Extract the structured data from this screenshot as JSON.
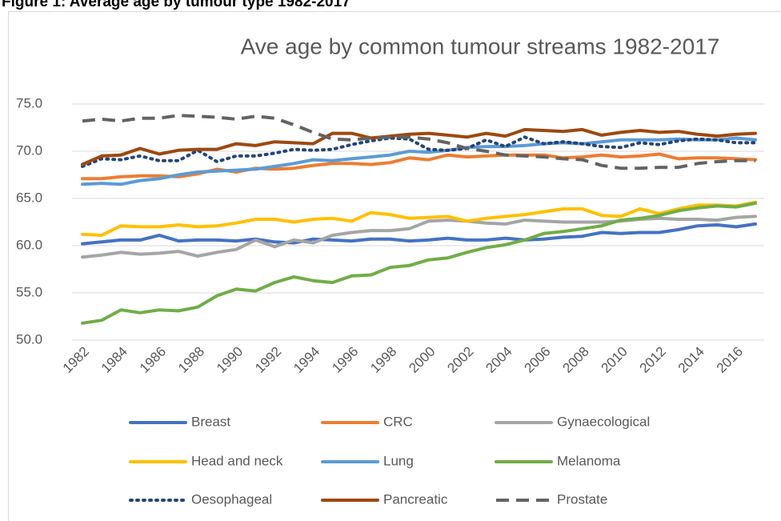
{
  "chart_data": {
    "type": "line",
    "caption": "Figure 1: Average age by tumour type 1982-2017",
    "title": "Ave age by common tumour streams 1982-2017",
    "categories": [
      "1982",
      null,
      "1984",
      null,
      "1986",
      null,
      "1988",
      null,
      "1990",
      null,
      "1992",
      null,
      "1994",
      null,
      "1996",
      null,
      "1998",
      null,
      "2000",
      null,
      "2002",
      null,
      "2004",
      null,
      "2006",
      null,
      "2008",
      null,
      "2010",
      null,
      "2012",
      null,
      "2014",
      null,
      "2016",
      null
    ],
    "ylim": [
      50,
      75
    ],
    "yticks": [
      {
        "value": 50,
        "label": "50.0"
      },
      {
        "value": 55,
        "label": "55.0"
      },
      {
        "value": 60,
        "label": "60.0"
      },
      {
        "value": 65,
        "label": "65.0"
      },
      {
        "value": 70,
        "label": "70.0"
      },
      {
        "value": 75,
        "label": "75.0"
      }
    ],
    "grid": true,
    "legend": "bottom",
    "series": [
      {
        "name": "Breast",
        "color": "#4472c4",
        "dash": "solid",
        "values": [
          60.2,
          60.4,
          60.6,
          60.6,
          61.1,
          60.5,
          60.6,
          60.6,
          60.5,
          60.7,
          60.4,
          60.3,
          60.7,
          60.6,
          60.5,
          60.7,
          60.7,
          60.5,
          60.6,
          60.8,
          60.6,
          60.6,
          60.8,
          60.6,
          60.7,
          60.9,
          61.0,
          61.4,
          61.3,
          61.4,
          61.4,
          61.7,
          62.1,
          62.2,
          62.0,
          62.3
        ]
      },
      {
        "name": "CRC",
        "color": "#ed7d31",
        "dash": "solid",
        "values": [
          67.1,
          67.1,
          67.3,
          67.4,
          67.4,
          67.3,
          67.6,
          68.1,
          67.8,
          68.2,
          68.1,
          68.2,
          68.5,
          68.7,
          68.7,
          68.6,
          68.8,
          69.3,
          69.1,
          69.6,
          69.4,
          69.5,
          69.6,
          69.6,
          69.6,
          69.3,
          69.4,
          69.6,
          69.4,
          69.5,
          69.7,
          69.2,
          69.3,
          69.3,
          69.2,
          69.1
        ]
      },
      {
        "name": "Gynaecological",
        "color": "#a5a5a5",
        "dash": "solid",
        "values": [
          58.8,
          59.0,
          59.3,
          59.1,
          59.2,
          59.4,
          58.9,
          59.3,
          59.6,
          60.6,
          59.9,
          60.6,
          60.3,
          61.1,
          61.4,
          61.6,
          61.6,
          61.8,
          62.6,
          62.7,
          62.6,
          62.4,
          62.3,
          62.7,
          62.6,
          62.5,
          62.5,
          62.5,
          62.6,
          62.8,
          62.9,
          62.8,
          62.8,
          62.7,
          63.0,
          63.1
        ]
      },
      {
        "name": "Head and neck",
        "color": "#ffc000",
        "dash": "solid",
        "values": [
          61.2,
          61.1,
          62.1,
          62.0,
          62.0,
          62.2,
          62.0,
          62.1,
          62.4,
          62.8,
          62.8,
          62.5,
          62.8,
          62.9,
          62.6,
          63.5,
          63.3,
          62.9,
          63.0,
          63.1,
          62.6,
          62.9,
          63.1,
          63.3,
          63.6,
          63.9,
          63.9,
          63.2,
          63.1,
          63.9,
          63.4,
          63.9,
          64.3,
          64.3,
          64.2,
          64.6
        ]
      },
      {
        "name": "Lung",
        "color": "#5b9bd5",
        "dash": "solid",
        "values": [
          66.5,
          66.6,
          66.5,
          66.9,
          67.1,
          67.5,
          67.8,
          67.9,
          68.0,
          68.1,
          68.4,
          68.7,
          69.1,
          69.0,
          69.2,
          69.4,
          69.6,
          70.0,
          69.9,
          70.1,
          70.4,
          70.5,
          70.5,
          70.6,
          70.8,
          70.9,
          70.8,
          71.0,
          71.2,
          71.2,
          71.2,
          71.3,
          71.2,
          71.2,
          71.4,
          71.2
        ]
      },
      {
        "name": "Melanoma",
        "color": "#70ad47",
        "dash": "solid",
        "values": [
          51.8,
          52.1,
          53.2,
          52.9,
          53.2,
          53.1,
          53.5,
          54.7,
          55.4,
          55.2,
          56.1,
          56.7,
          56.3,
          56.1,
          56.8,
          56.9,
          57.7,
          57.9,
          58.5,
          58.7,
          59.3,
          59.8,
          60.1,
          60.6,
          61.3,
          61.5,
          61.8,
          62.1,
          62.7,
          62.9,
          63.2,
          63.7,
          64.0,
          64.2,
          64.1,
          64.5
        ]
      },
      {
        "name": "Oesophageal",
        "color": "#264478",
        "dash": "dot",
        "values": [
          68.4,
          69.2,
          69.1,
          69.5,
          69.0,
          69.0,
          70.1,
          68.9,
          69.5,
          69.5,
          69.8,
          70.2,
          70.1,
          70.2,
          70.7,
          71.1,
          71.4,
          71.3,
          70.2,
          70.1,
          70.3,
          71.2,
          70.5,
          71.5,
          70.8,
          71.0,
          70.8,
          70.5,
          70.4,
          70.9,
          70.7,
          71.1,
          71.3,
          71.2,
          70.9,
          70.9
        ]
      },
      {
        "name": "Pancreatic",
        "color": "#9e480e",
        "dash": "solid",
        "values": [
          68.6,
          69.5,
          69.6,
          70.3,
          69.7,
          70.1,
          70.2,
          70.2,
          70.8,
          70.6,
          71.0,
          70.9,
          70.8,
          71.9,
          71.9,
          71.4,
          71.6,
          71.8,
          71.9,
          71.7,
          71.5,
          71.9,
          71.6,
          72.3,
          72.2,
          72.1,
          72.3,
          71.7,
          72.0,
          72.2,
          72.0,
          72.1,
          71.8,
          71.6,
          71.8,
          71.9
        ]
      },
      {
        "name": "Prostate",
        "color": "#636363",
        "dash": "dash",
        "values": [
          73.2,
          73.4,
          73.2,
          73.5,
          73.5,
          73.8,
          73.7,
          73.6,
          73.4,
          73.7,
          73.5,
          72.8,
          72.0,
          71.3,
          71.2,
          71.4,
          71.5,
          71.5,
          71.3,
          70.9,
          70.3,
          70.0,
          69.6,
          69.5,
          69.4,
          69.2,
          69.1,
          68.5,
          68.2,
          68.2,
          68.3,
          68.3,
          68.7,
          68.9,
          69.0,
          69.0
        ]
      }
    ]
  }
}
